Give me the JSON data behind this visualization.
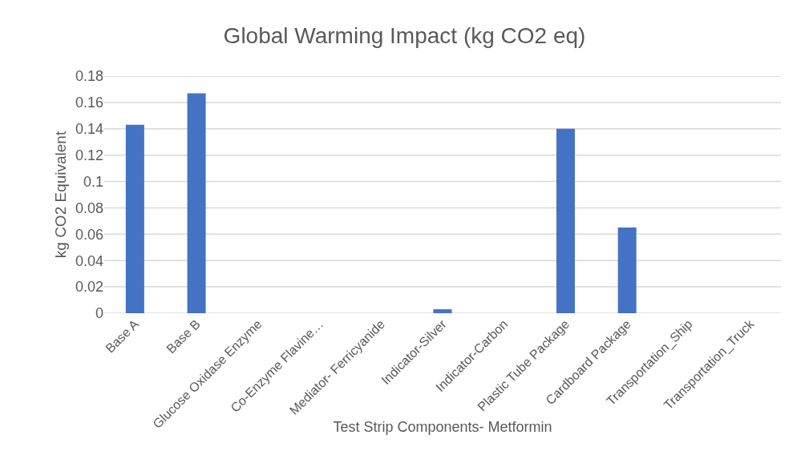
{
  "chart_data": {
    "type": "bar",
    "title": "Global Warming Impact (kg CO2 eq)",
    "xlabel": "Test Strip Components- Metformin",
    "ylabel": "kg CO2 Equivalent",
    "categories": [
      "Base A",
      "Base B",
      "Glucose Oxidase Enzyme",
      "Co-Enzyme Flavine…",
      "Mediator- Ferricyanide",
      "Indicator-Silver",
      "Indicator-Carbon",
      "Plastic Tube Package",
      "Cardboard Package",
      "Transportation_Ship",
      "Transportation_Truck"
    ],
    "values": [
      0.143,
      0.167,
      0,
      0,
      0,
      0.003,
      0,
      0.14,
      0.065,
      0,
      0
    ],
    "color": "#4472c4",
    "ylim": [
      0,
      0.18
    ],
    "yticks": [
      0,
      0.02,
      0.04,
      0.06,
      0.08,
      0.1,
      0.12,
      0.14,
      0.16,
      0.18
    ],
    "grid": "y"
  }
}
